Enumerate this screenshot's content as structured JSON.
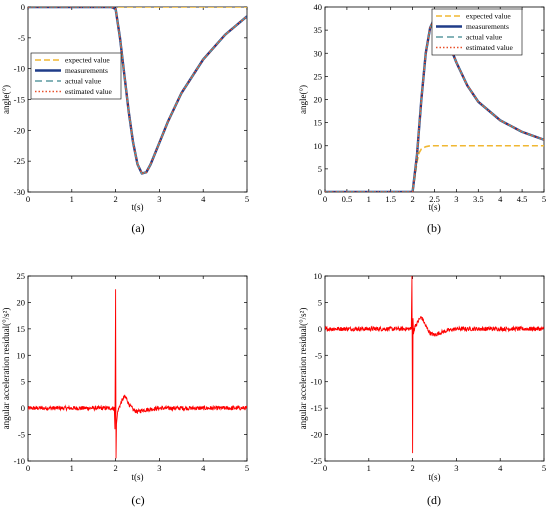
{
  "colors": {
    "expected": "#f0b732",
    "measurements": "#1f3c88",
    "actual": "#5b9aa0",
    "estimated": "#e8502a",
    "residual": "#ff0000"
  },
  "chart_data": [
    {
      "id": "a",
      "type": "line",
      "caption": "(a)",
      "xlabel": "t(s)",
      "ylabel": "angle(°)",
      "xlim": [
        0,
        5
      ],
      "ylim": [
        -30,
        0
      ],
      "xticks": [
        "0",
        "1",
        "2",
        "3",
        "4",
        "5"
      ],
      "yticks": [
        "0",
        "-5",
        "-10",
        "-15",
        "-20",
        "-25",
        "-30"
      ],
      "grid": false,
      "legend_position": "center-left",
      "series": [
        {
          "name": "expected value",
          "style": "dashed",
          "x": [
            0,
            5
          ],
          "y": [
            0,
            0
          ]
        },
        {
          "name": "measurements",
          "style": "solid",
          "x": [
            0,
            1.9,
            2.0,
            2.1,
            2.2,
            2.3,
            2.4,
            2.5,
            2.6,
            2.7,
            2.8,
            3.0,
            3.2,
            3.5,
            4.0,
            4.5,
            5.0
          ],
          "y": [
            0,
            0,
            -0.3,
            -5,
            -11,
            -17,
            -22,
            -25.5,
            -27,
            -26.8,
            -25.5,
            -22,
            -18.5,
            -14,
            -8.5,
            -4.5,
            -1.5
          ]
        },
        {
          "name": "actual value",
          "style": "dashed",
          "x": [
            0,
            1.9,
            2.0,
            2.1,
            2.2,
            2.3,
            2.4,
            2.5,
            2.6,
            2.7,
            2.8,
            3.0,
            3.2,
            3.5,
            4.0,
            4.5,
            5.0
          ],
          "y": [
            0,
            0,
            -0.3,
            -5,
            -11,
            -17,
            -22,
            -25.5,
            -27,
            -26.8,
            -25.5,
            -22,
            -18.5,
            -14,
            -8.5,
            -4.5,
            -1.5
          ]
        },
        {
          "name": "estimated value",
          "style": "dotted",
          "x": [
            0,
            1.9,
            2.0,
            2.1,
            2.2,
            2.3,
            2.4,
            2.5,
            2.6,
            2.7,
            2.8,
            3.0,
            3.2,
            3.5,
            4.0,
            4.5,
            5.0
          ],
          "y": [
            0,
            0,
            -0.3,
            -5,
            -11,
            -17,
            -22,
            -25.5,
            -27,
            -26.8,
            -25.5,
            -22,
            -18.5,
            -14,
            -8.5,
            -4.5,
            -1.5
          ]
        }
      ]
    },
    {
      "id": "b",
      "type": "line",
      "caption": "(b)",
      "xlabel": "t(s)",
      "ylabel": "angle(°)",
      "xlim": [
        0,
        5
      ],
      "ylim": [
        0,
        40
      ],
      "xticks": [
        "0",
        "0.5",
        "1",
        "1.5",
        "2",
        "2.5",
        "3",
        "3.5",
        "4",
        "4.5",
        "5"
      ],
      "yticks": [
        "0",
        "5",
        "10",
        "15",
        "20",
        "25",
        "30",
        "35",
        "40"
      ],
      "grid": false,
      "legend_position": "top-right",
      "series": [
        {
          "name": "expected value",
          "style": "dashed",
          "x": [
            0,
            2.0,
            2.05,
            2.1,
            2.15,
            2.2,
            2.3,
            2.4,
            5.0
          ],
          "y": [
            0,
            0,
            3,
            6.5,
            8.5,
            9.3,
            9.8,
            10,
            10
          ]
        },
        {
          "name": "measurements",
          "style": "solid",
          "x": [
            0,
            2.0,
            2.1,
            2.2,
            2.3,
            2.4,
            2.5,
            2.6,
            2.7,
            2.8,
            3.0,
            3.25,
            3.5,
            4.0,
            4.5,
            5.0
          ],
          "y": [
            0,
            0,
            8,
            20,
            30,
            35.5,
            37.5,
            37,
            35.3,
            32.8,
            28,
            23,
            19.5,
            15.5,
            13,
            11.3
          ]
        },
        {
          "name": "actual value",
          "style": "dashed",
          "x": [
            0,
            2.0,
            2.1,
            2.2,
            2.3,
            2.4,
            2.5,
            2.6,
            2.7,
            2.8,
            3.0,
            3.25,
            3.5,
            4.0,
            4.5,
            5.0
          ],
          "y": [
            0,
            0,
            8,
            20,
            30,
            35.5,
            37.5,
            37,
            35.3,
            32.8,
            28,
            23,
            19.5,
            15.5,
            13,
            11.3
          ]
        },
        {
          "name": "estimated value",
          "style": "dotted",
          "x": [
            0,
            2.0,
            2.1,
            2.2,
            2.3,
            2.4,
            2.5,
            2.6,
            2.7,
            2.8,
            3.0,
            3.25,
            3.5,
            4.0,
            4.5,
            5.0
          ],
          "y": [
            0,
            0,
            8,
            20,
            30,
            35.5,
            37.5,
            37,
            35.3,
            32.8,
            28,
            23,
            19.5,
            15.5,
            13,
            11.3
          ]
        }
      ]
    },
    {
      "id": "c",
      "type": "line",
      "caption": "(c)",
      "xlabel": "t(s)",
      "ylabel": "angular acceleration residual(°/s²)",
      "xlim": [
        0,
        5
      ],
      "ylim": [
        -10,
        25
      ],
      "xticks": [
        "0",
        "1",
        "2",
        "3",
        "4",
        "5"
      ],
      "yticks": [
        "-10",
        "-5",
        "0",
        "5",
        "10",
        "15",
        "20",
        "25"
      ],
      "grid": false,
      "noise_amplitude": 0.4,
      "series": [
        {
          "style": "solid",
          "x": [
            0,
            1.97,
            1.985,
            2.0,
            2.01,
            2.02,
            2.05,
            2.1,
            2.15,
            2.2,
            2.25,
            2.3,
            2.4,
            2.5,
            2.6,
            2.8,
            3.0,
            5.0
          ],
          "y": [
            0,
            0,
            -4,
            22.5,
            -9.5,
            -3,
            -0.5,
            0.5,
            1.5,
            2.2,
            1.8,
            0.8,
            -0.3,
            -0.7,
            -0.4,
            -0.2,
            0,
            0
          ]
        }
      ]
    },
    {
      "id": "d",
      "type": "line",
      "caption": "(d)",
      "xlabel": "t(s)",
      "ylabel": "angular acceleration residual(°/s²)",
      "xlim": [
        0,
        5
      ],
      "ylim": [
        -25,
        10
      ],
      "xticks": [
        "0",
        "1",
        "2",
        "3",
        "4",
        "5"
      ],
      "yticks": [
        "-25",
        "-20",
        "-15",
        "-10",
        "-5",
        "0",
        "5",
        "10"
      ],
      "grid": false,
      "noise_amplitude": 0.4,
      "series": [
        {
          "style": "solid",
          "x": [
            0,
            1.97,
            1.985,
            2.0,
            2.01,
            2.02,
            2.05,
            2.1,
            2.15,
            2.2,
            2.25,
            2.3,
            2.4,
            2.5,
            2.6,
            2.8,
            3.0,
            5.0
          ],
          "y": [
            0,
            0,
            10,
            -23.5,
            2,
            -1,
            0.5,
            1,
            1.8,
            2.2,
            1.5,
            0.5,
            -0.8,
            -1.2,
            -0.8,
            -0.3,
            0,
            0
          ]
        }
      ]
    }
  ]
}
